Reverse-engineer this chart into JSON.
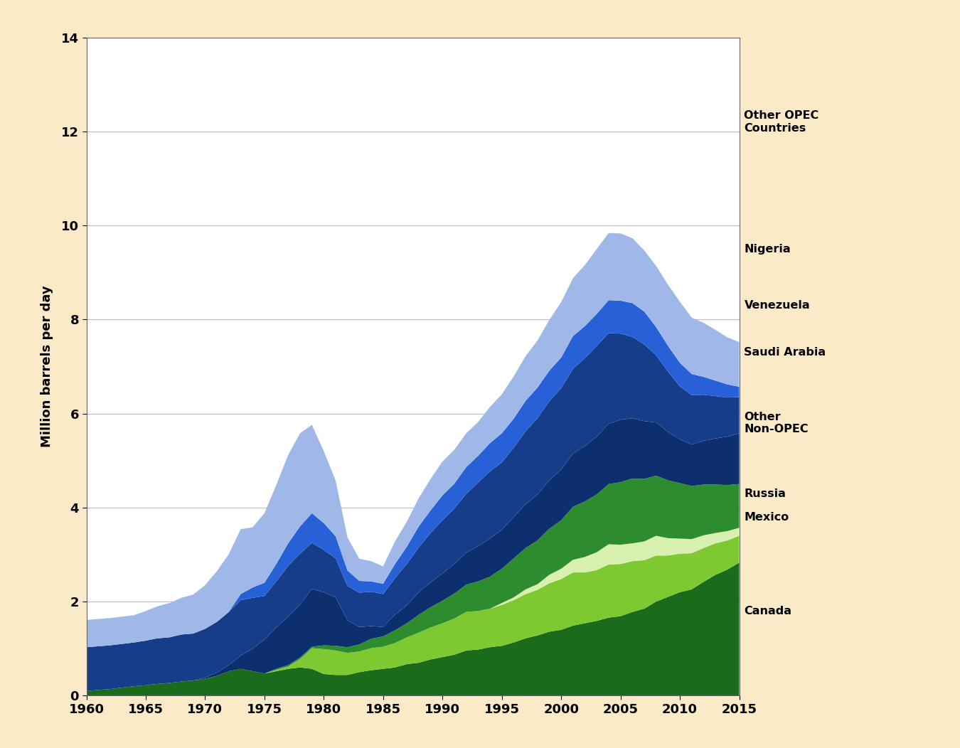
{
  "ylabel": "Million barrels per day",
  "background_color": "#faeac8",
  "plot_background": "#ffffff",
  "years": [
    1960,
    1961,
    1962,
    1963,
    1964,
    1965,
    1966,
    1967,
    1968,
    1969,
    1970,
    1971,
    1972,
    1973,
    1974,
    1975,
    1976,
    1977,
    1978,
    1979,
    1980,
    1981,
    1982,
    1983,
    1984,
    1985,
    1986,
    1987,
    1988,
    1989,
    1990,
    1991,
    1992,
    1993,
    1994,
    1995,
    1996,
    1997,
    1998,
    1999,
    2000,
    2001,
    2002,
    2003,
    2004,
    2005,
    2006,
    2007,
    2008,
    2009,
    2010,
    2011,
    2012,
    2013,
    2014,
    2015
  ],
  "series": {
    "Canada": [
      0.1,
      0.12,
      0.14,
      0.17,
      0.2,
      0.22,
      0.25,
      0.27,
      0.3,
      0.32,
      0.36,
      0.42,
      0.52,
      0.57,
      0.52,
      0.47,
      0.52,
      0.57,
      0.6,
      0.57,
      0.46,
      0.44,
      0.44,
      0.5,
      0.54,
      0.57,
      0.6,
      0.67,
      0.7,
      0.77,
      0.82,
      0.87,
      0.96,
      0.98,
      1.03,
      1.06,
      1.13,
      1.22,
      1.28,
      1.36,
      1.4,
      1.49,
      1.54,
      1.59,
      1.66,
      1.69,
      1.78,
      1.85,
      2.0,
      2.1,
      2.2,
      2.26,
      2.42,
      2.57,
      2.68,
      2.83
    ],
    "Mexico": [
      0.0,
      0.0,
      0.0,
      0.0,
      0.0,
      0.0,
      0.0,
      0.0,
      0.0,
      0.0,
      0.0,
      0.0,
      0.0,
      0.0,
      0.0,
      0.0,
      0.03,
      0.05,
      0.18,
      0.44,
      0.53,
      0.52,
      0.47,
      0.44,
      0.47,
      0.47,
      0.52,
      0.57,
      0.64,
      0.68,
      0.72,
      0.77,
      0.82,
      0.82,
      0.82,
      0.87,
      0.9,
      0.94,
      0.97,
      1.03,
      1.08,
      1.13,
      1.08,
      1.08,
      1.13,
      1.11,
      1.08,
      1.03,
      0.98,
      0.88,
      0.82,
      0.77,
      0.72,
      0.67,
      0.62,
      0.57
    ],
    "Russia": [
      0.0,
      0.0,
      0.0,
      0.0,
      0.0,
      0.0,
      0.0,
      0.0,
      0.0,
      0.0,
      0.0,
      0.0,
      0.0,
      0.0,
      0.0,
      0.0,
      0.0,
      0.0,
      0.0,
      0.0,
      0.0,
      0.0,
      0.0,
      0.0,
      0.0,
      0.0,
      0.0,
      0.0,
      0.0,
      0.0,
      0.0,
      0.0,
      0.0,
      0.0,
      0.0,
      0.04,
      0.06,
      0.1,
      0.12,
      0.18,
      0.22,
      0.27,
      0.33,
      0.38,
      0.43,
      0.41,
      0.38,
      0.4,
      0.42,
      0.37,
      0.32,
      0.3,
      0.27,
      0.22,
      0.2,
      0.17
    ],
    "Other Non-OPEC": [
      0.0,
      0.0,
      0.0,
      0.0,
      0.0,
      0.0,
      0.0,
      0.0,
      0.0,
      0.0,
      0.0,
      0.0,
      0.0,
      0.0,
      0.0,
      0.0,
      0.02,
      0.03,
      0.03,
      0.03,
      0.08,
      0.1,
      0.12,
      0.15,
      0.2,
      0.22,
      0.27,
      0.3,
      0.38,
      0.43,
      0.48,
      0.53,
      0.58,
      0.63,
      0.68,
      0.73,
      0.83,
      0.88,
      0.93,
      0.98,
      1.03,
      1.13,
      1.18,
      1.23,
      1.28,
      1.33,
      1.38,
      1.33,
      1.28,
      1.23,
      1.18,
      1.13,
      1.08,
      1.03,
      0.98,
      0.93
    ],
    "Saudi Arabia": [
      0.0,
      0.0,
      0.0,
      0.0,
      0.0,
      0.0,
      0.0,
      0.0,
      0.0,
      0.0,
      0.03,
      0.07,
      0.13,
      0.28,
      0.48,
      0.72,
      0.88,
      1.03,
      1.13,
      1.23,
      1.13,
      1.03,
      0.57,
      0.37,
      0.27,
      0.2,
      0.33,
      0.38,
      0.48,
      0.53,
      0.58,
      0.63,
      0.68,
      0.75,
      0.81,
      0.83,
      0.88,
      0.93,
      0.98,
      1.03,
      1.08,
      1.13,
      1.18,
      1.23,
      1.28,
      1.33,
      1.28,
      1.23,
      1.13,
      1.03,
      0.93,
      0.88,
      0.93,
      0.98,
      1.03,
      1.08
    ],
    "Venezuela": [
      0.93,
      0.93,
      0.93,
      0.93,
      0.93,
      0.95,
      0.97,
      0.97,
      1.0,
      1.0,
      1.03,
      1.08,
      1.13,
      1.18,
      1.08,
      0.93,
      0.98,
      1.08,
      1.08,
      0.98,
      0.9,
      0.83,
      0.73,
      0.73,
      0.73,
      0.7,
      0.78,
      0.88,
      0.95,
      1.05,
      1.13,
      1.18,
      1.25,
      1.35,
      1.43,
      1.43,
      1.47,
      1.55,
      1.62,
      1.68,
      1.73,
      1.8,
      1.87,
      1.93,
      1.93,
      1.83,
      1.73,
      1.63,
      1.43,
      1.28,
      1.13,
      1.05,
      0.98,
      0.9,
      0.83,
      0.77
    ],
    "Nigeria": [
      0.0,
      0.0,
      0.0,
      0.0,
      0.0,
      0.0,
      0.0,
      0.0,
      0.0,
      0.0,
      0.0,
      0.0,
      0.0,
      0.13,
      0.22,
      0.28,
      0.37,
      0.48,
      0.58,
      0.63,
      0.57,
      0.47,
      0.33,
      0.25,
      0.22,
      0.22,
      0.3,
      0.37,
      0.45,
      0.48,
      0.53,
      0.53,
      0.57,
      0.57,
      0.6,
      0.62,
      0.62,
      0.65,
      0.65,
      0.65,
      0.65,
      0.7,
      0.68,
      0.68,
      0.7,
      0.7,
      0.72,
      0.7,
      0.6,
      0.55,
      0.5,
      0.45,
      0.38,
      0.33,
      0.28,
      0.22
    ],
    "Other OPEC Countries": [
      0.58,
      0.58,
      0.58,
      0.58,
      0.58,
      0.63,
      0.68,
      0.73,
      0.78,
      0.83,
      0.93,
      1.08,
      1.23,
      1.38,
      1.28,
      1.48,
      1.68,
      1.88,
      1.98,
      1.88,
      1.53,
      1.18,
      0.7,
      0.47,
      0.43,
      0.37,
      0.48,
      0.53,
      0.6,
      0.67,
      0.72,
      0.72,
      0.72,
      0.72,
      0.77,
      0.83,
      0.9,
      0.95,
      1.0,
      1.08,
      1.18,
      1.23,
      1.3,
      1.38,
      1.43,
      1.43,
      1.38,
      1.3,
      1.3,
      1.3,
      1.3,
      1.2,
      1.15,
      1.08,
      1.0,
      0.95
    ]
  },
  "colors": {
    "Canada": "#1a6b1a",
    "Mexico": "#7ec832",
    "Russia": "#d8f0b0",
    "Other Non-OPEC": "#2d8c2d",
    "Saudi Arabia": "#0d2f6e",
    "Venezuela": "#153d8a",
    "Nigeria": "#2860d8",
    "Other OPEC Countries": "#a0b8e8"
  },
  "ylim": [
    0,
    14
  ],
  "yticks": [
    0,
    2,
    4,
    6,
    8,
    10,
    12,
    14
  ],
  "xticks": [
    1960,
    1965,
    1970,
    1975,
    1980,
    1985,
    1990,
    1995,
    2000,
    2005,
    2010,
    2015
  ],
  "legend_order": [
    "Other OPEC Countries",
    "Nigeria",
    "Venezuela",
    "Saudi Arabia",
    "Other Non-OPEC",
    "Russia",
    "Mexico",
    "Canada"
  ],
  "legend_labels": {
    "Other OPEC Countries": "Other OPEC\nCountries",
    "Nigeria": "Nigeria",
    "Venezuela": "Venezuela",
    "Saudi Arabia": "Saudi Arabia",
    "Other Non-OPEC": "Other\nNon-OPEC",
    "Russia": "Russia",
    "Mexico": "Mexico",
    "Canada": "Canada"
  }
}
